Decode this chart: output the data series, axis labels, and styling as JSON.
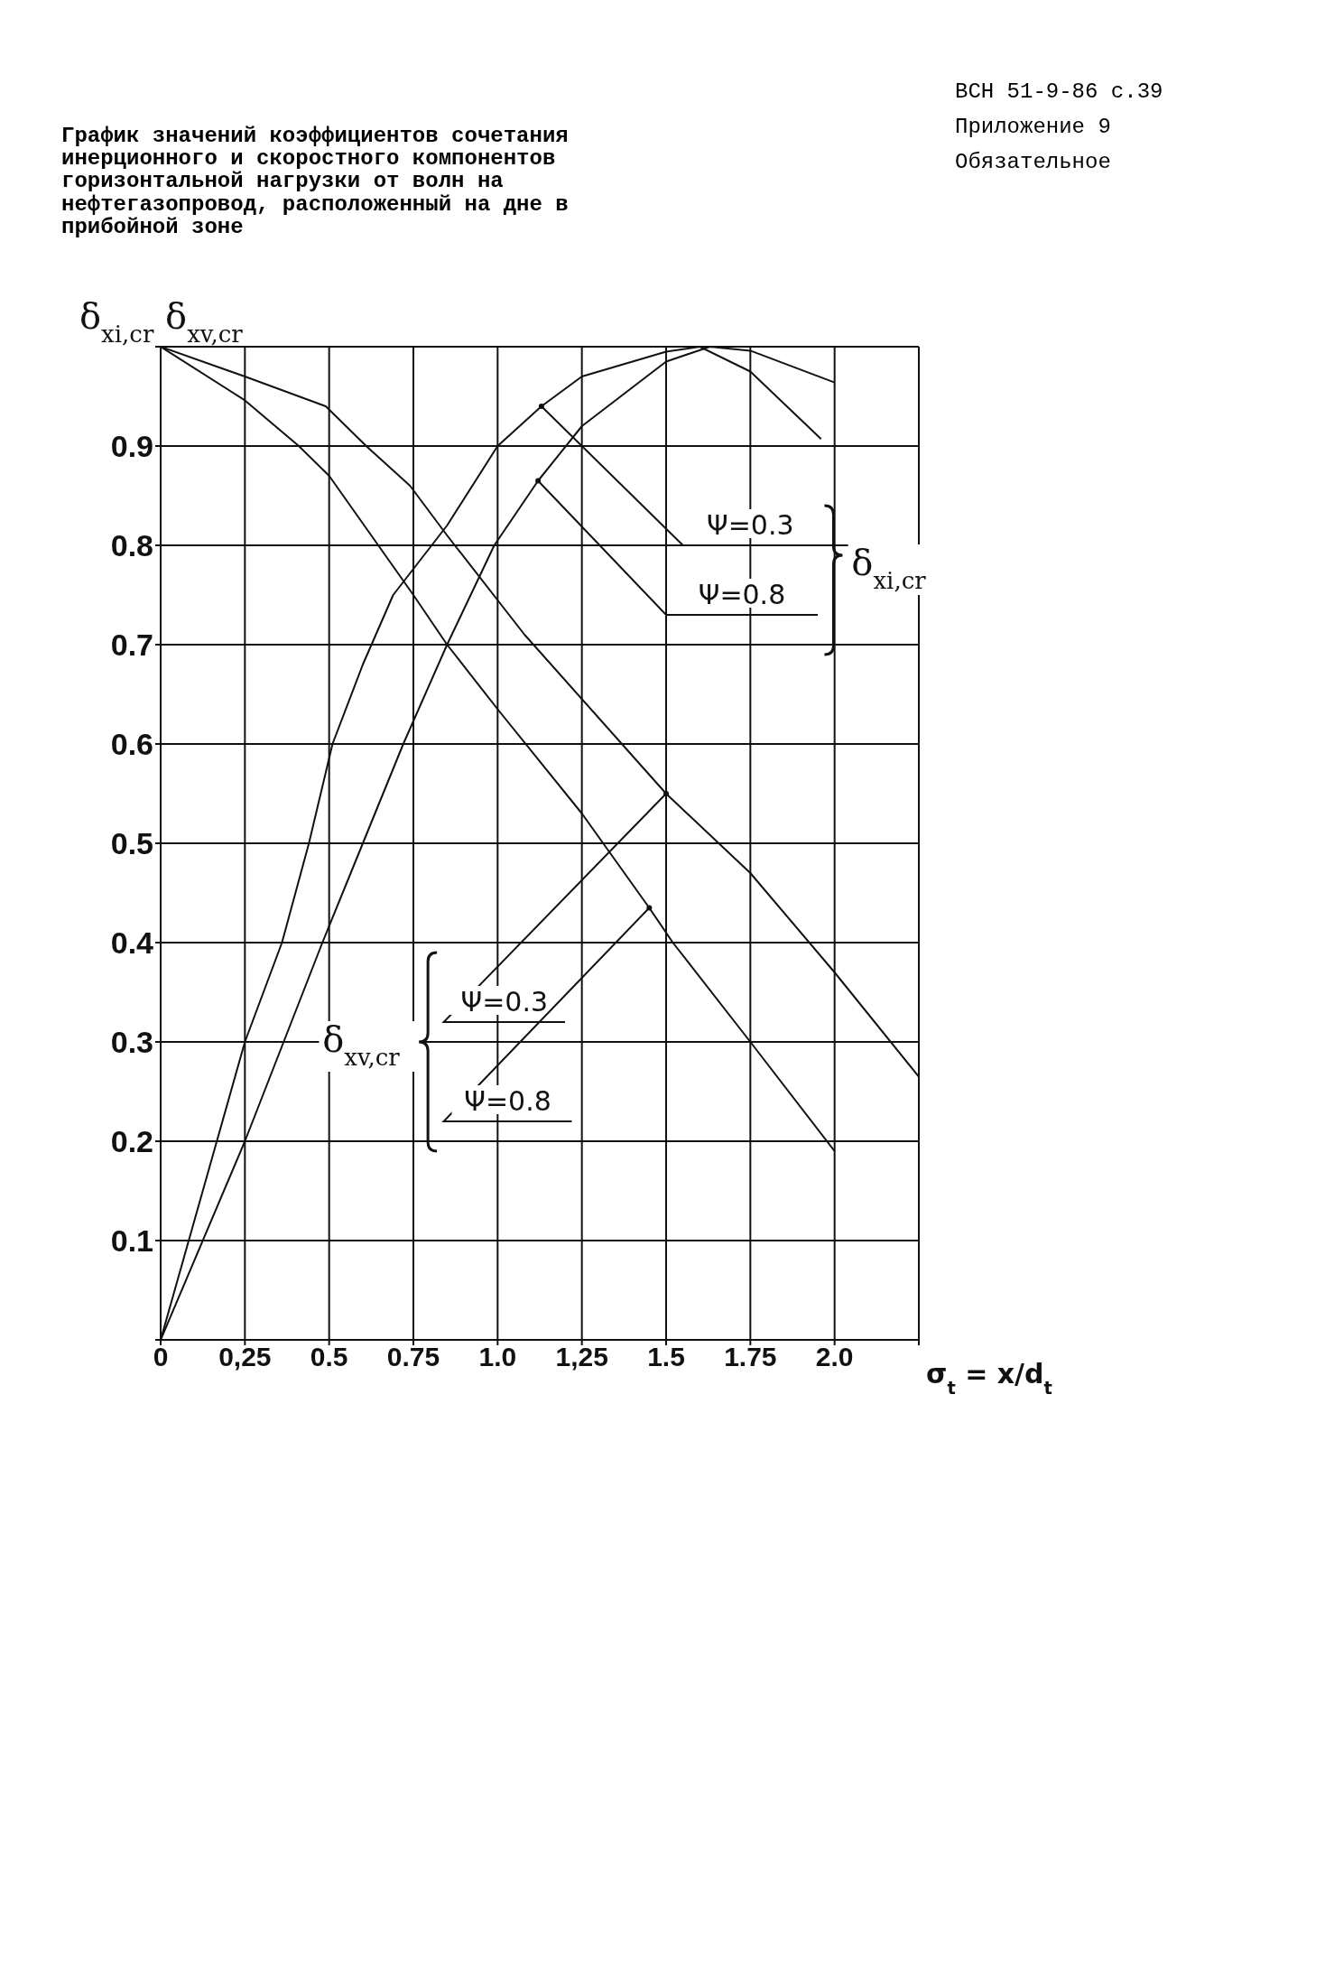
{
  "chart_data": {
    "type": "line",
    "title": "График значений коэффициентов сочетания инерционного и скоростного компонентов горизонтальной нагрузки от волн на нефтегазопровод, расположенный на дне в прибойной зоне",
    "xlabel": "σ$_{t}$ = x/d$_{t}$",
    "ylabel": "δ$_{xi,cr}$ δ$_{xv,cr}$",
    "annotations": [
      "ВСН 51-9-86 с.39",
      "Приложение 9",
      "Обязательное",
      "δ$_{xi,cr}$",
      "δ$_{xv,cr}$"
    ],
    "series": [
      {
        "name": "Ψ=0.3",
        "color": "#111111",
        "x": [
          0,
          0.25,
          0.36,
          0.44,
          0.51,
          0.6,
          0.69,
          0.85,
          1.0,
          1.13,
          1.25,
          1.5,
          1.6,
          1.75,
          1.96
        ],
        "values": [
          0,
          0.3,
          0.4,
          0.5,
          0.6,
          0.68,
          0.75,
          0.82,
          0.9,
          0.94,
          0.97,
          0.995,
          1.0,
          0.975,
          0.907
        ]
      },
      {
        "name": "Ψ=0.8",
        "color": "#111111",
        "x": [
          0,
          0.25,
          0.48,
          0.6,
          0.72,
          0.85,
          0.99,
          1.12,
          1.25,
          1.5,
          1.63,
          1.75,
          2.0
        ],
        "values": [
          0,
          0.2,
          0.4,
          0.5,
          0.6,
          0.7,
          0.8,
          0.865,
          0.92,
          0.985,
          1.0,
          0.996,
          0.964
        ]
      },
      {
        "name": "Ψ=0.3",
        "color": "#111111",
        "x": [
          0,
          0.25,
          0.49,
          0.61,
          0.74,
          0.85,
          1.08,
          1.5,
          1.75,
          2.0,
          2.25
        ],
        "values": [
          1.0,
          0.97,
          0.94,
          0.9,
          0.86,
          0.81,
          0.71,
          0.55,
          0.47,
          0.37,
          0.265
        ]
      },
      {
        "name": "Ψ=0.8",
        "color": "#111111",
        "x": [
          0,
          0.25,
          0.41,
          0.5,
          0.75,
          0.85,
          1.0,
          1.25,
          1.45,
          1.52,
          1.75,
          2.0
        ],
        "values": [
          1.0,
          0.946,
          0.9,
          0.87,
          0.75,
          0.7,
          0.635,
          0.53,
          0.435,
          0.4,
          0.3,
          0.19
        ]
      }
    ],
    "xlim": [
      0,
      2.25
    ],
    "xticks": [
      0,
      {
        "value": 0.25,
        "label": "0,25"
      },
      0.5,
      0.75,
      {
        "value": 1,
        "label": "1.0"
      },
      {
        "value": 1.25,
        "label": "1,25"
      },
      1.5,
      1.75,
      {
        "value": 2,
        "label": "2.0"
      },
      {
        "value": 2.25,
        "label": null
      }
    ],
    "ylim": [
      0,
      1
    ],
    "yticks": [
      {
        "value": 0,
        "label": null
      },
      0.1,
      0.2,
      0.3,
      0.4,
      0.5,
      0.6,
      0.7,
      0.8,
      0.9,
      {
        "value": 1,
        "label": null
      }
    ],
    "grid": true,
    "marker": "none",
    "line_style": "solid"
  }
}
